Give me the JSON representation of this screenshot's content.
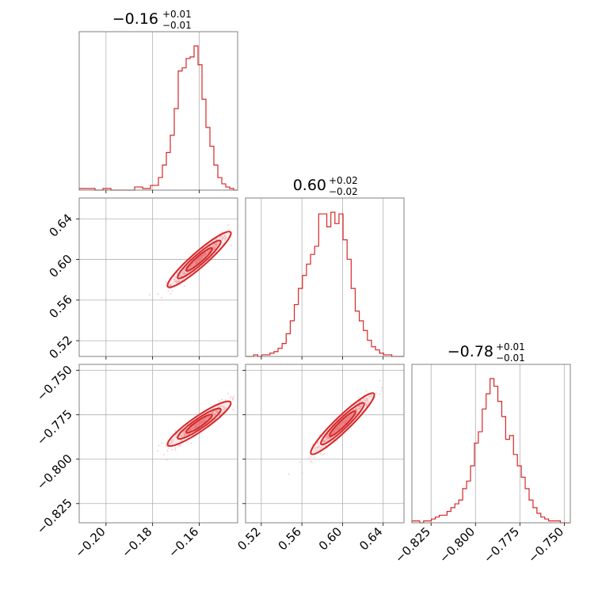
{
  "chart_data": {
    "type": "corner",
    "color": "#d62728",
    "scatter_color": "#f4a6ae",
    "grid": true,
    "params": [
      {
        "name": "p0",
        "range": [
          -0.2115,
          -0.1435
        ],
        "ticks": [
          -0.2,
          -0.18,
          -0.16
        ],
        "tick_labels": [
          "−0.20",
          "−0.18",
          "−0.16"
        ],
        "title_value": "−0.16",
        "title_plus": "+0.01",
        "title_minus": "−0.01",
        "hist_bins_x": [
          -0.2115,
          -0.2081,
          -0.2047,
          -0.2013,
          -0.1979,
          -0.1945,
          -0.1911,
          -0.1877,
          -0.1843,
          -0.1809,
          -0.1775,
          -0.1758,
          -0.1741,
          -0.1724,
          -0.1707,
          -0.169,
          -0.1673,
          -0.1656,
          -0.1639,
          -0.1622,
          -0.1605,
          -0.1588,
          -0.1571,
          -0.1554,
          -0.1537,
          -0.152,
          -0.1503,
          -0.1486,
          -0.1469,
          -0.1452,
          -0.1435
        ],
        "hist_counts": [
          1,
          1,
          0,
          1,
          0,
          0,
          0,
          2,
          1,
          3,
          8,
          16,
          24,
          35,
          52,
          76,
          78,
          84,
          85,
          92,
          80,
          58,
          40,
          28,
          16,
          8,
          4,
          2,
          1,
          0
        ]
      },
      {
        "name": "p1",
        "range": [
          0.5045,
          0.6605
        ],
        "ticks": [
          0.52,
          0.56,
          0.6,
          0.64
        ],
        "tick_labels": [
          "0.52",
          "0.56",
          "0.60",
          "0.64"
        ],
        "title_value": "0.60",
        "title_plus": "+0.02",
        "title_minus": "−0.02",
        "hist_bins_x": [
          0.5045,
          0.5085,
          0.5125,
          0.5165,
          0.5205,
          0.5245,
          0.5285,
          0.5325,
          0.5365,
          0.5405,
          0.5445,
          0.5485,
          0.5525,
          0.5565,
          0.5605,
          0.5645,
          0.5685,
          0.5725,
          0.5765,
          0.5805,
          0.5845,
          0.5885,
          0.5925,
          0.5965,
          0.6005,
          0.6045,
          0.6085,
          0.6125,
          0.6165,
          0.6205,
          0.6245,
          0.6285,
          0.6325,
          0.6365,
          0.6405,
          0.6445,
          0.6485,
          0.6525,
          0.6565,
          0.6605
        ],
        "hist_counts": [
          0,
          0,
          1,
          0,
          1,
          1,
          2,
          3,
          5,
          8,
          14,
          22,
          32,
          42,
          50,
          57,
          63,
          68,
          88,
          88,
          80,
          89,
          82,
          88,
          72,
          60,
          42,
          28,
          22,
          16,
          10,
          6,
          4,
          2,
          1,
          1,
          0,
          0,
          0
        ]
      },
      {
        "name": "p2",
        "range": [
          -0.8358,
          -0.7466
        ],
        "ticks": [
          -0.825,
          -0.8,
          -0.775,
          -0.75
        ],
        "tick_labels": [
          "−0.825",
          "−0.800",
          "−0.775",
          "−0.750"
        ],
        "title_value": "−0.78",
        "title_plus": "+0.01",
        "title_minus": "−0.01",
        "hist_bins_x": [
          -0.8358,
          -0.8336,
          -0.8314,
          -0.8292,
          -0.827,
          -0.8248,
          -0.8226,
          -0.8204,
          -0.8182,
          -0.816,
          -0.8138,
          -0.8116,
          -0.8094,
          -0.8072,
          -0.805,
          -0.8028,
          -0.8006,
          -0.7984,
          -0.7962,
          -0.794,
          -0.7918,
          -0.7896,
          -0.7874,
          -0.7852,
          -0.783,
          -0.7808,
          -0.7786,
          -0.7764,
          -0.7742,
          -0.772,
          -0.7698,
          -0.7676,
          -0.7654,
          -0.7632,
          -0.761,
          -0.7588,
          -0.7566,
          -0.7544,
          -0.7522,
          -0.75,
          -0.7478,
          -0.7466
        ],
        "hist_counts": [
          1,
          1,
          0,
          1,
          1,
          2,
          3,
          4,
          4,
          6,
          8,
          10,
          12,
          18,
          22,
          30,
          42,
          48,
          60,
          68,
          76,
          72,
          64,
          56,
          44,
          46,
          36,
          30,
          24,
          18,
          12,
          8,
          5,
          3,
          2,
          1,
          1,
          1,
          0,
          0,
          0
        ]
      }
    ],
    "correlation": {
      "p0_vs_p1": {
        "slope": 2.0,
        "intercept_at": [
          -0.16,
          0.6
        ]
      },
      "p0_vs_p2": {
        "slope": 0.9,
        "intercept_at": [
          -0.16,
          -0.78
        ]
      },
      "p1_vs_p2": {
        "slope": 0.55,
        "intercept_at": [
          0.6,
          -0.78
        ]
      }
    }
  }
}
